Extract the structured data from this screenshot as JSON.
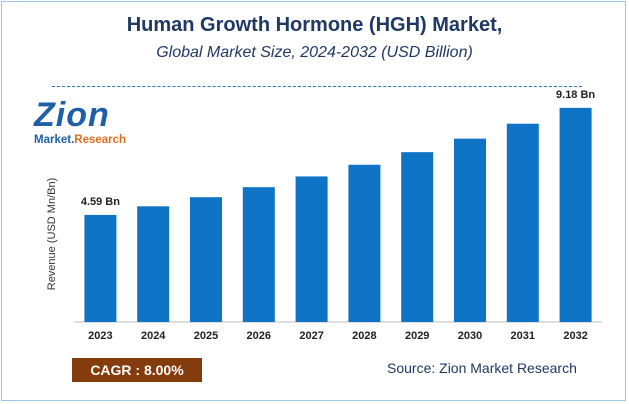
{
  "header": {
    "title": "Human Growth Hormone (HGH) Market,",
    "subtitle": "Global Market Size, 2024-2032 (USD Billion)"
  },
  "logo": {
    "brand": "Zion",
    "sub_left": "Market.",
    "sub_right": "Research"
  },
  "footer": {
    "cagr_text": "CAGR :  8.00%",
    "source_text": "Source: Zion Market Research"
  },
  "colors": {
    "bar": "#0f73c6",
    "title": "#1f3864",
    "cagr_bg": "#843c0c"
  },
  "chart_data": {
    "type": "bar",
    "title": "Human Growth Hormone (HGH) Market,",
    "subtitle": "Global Market Size, 2024-2032 (USD Billion)",
    "ylabel": "Revenue (USD Mn/Bn)",
    "xlabel": "",
    "categories": [
      "2023",
      "2024",
      "2025",
      "2026",
      "2027",
      "2028",
      "2029",
      "2030",
      "2031",
      "2032"
    ],
    "values": [
      4.59,
      4.96,
      5.35,
      5.78,
      6.24,
      6.74,
      7.28,
      7.86,
      8.5,
      9.18
    ],
    "data_labels": {
      "2023": "4.59 Bn",
      "2032": "9.18 Bn"
    },
    "ylim": [
      0,
      10
    ],
    "grid": false,
    "legend": "none"
  }
}
